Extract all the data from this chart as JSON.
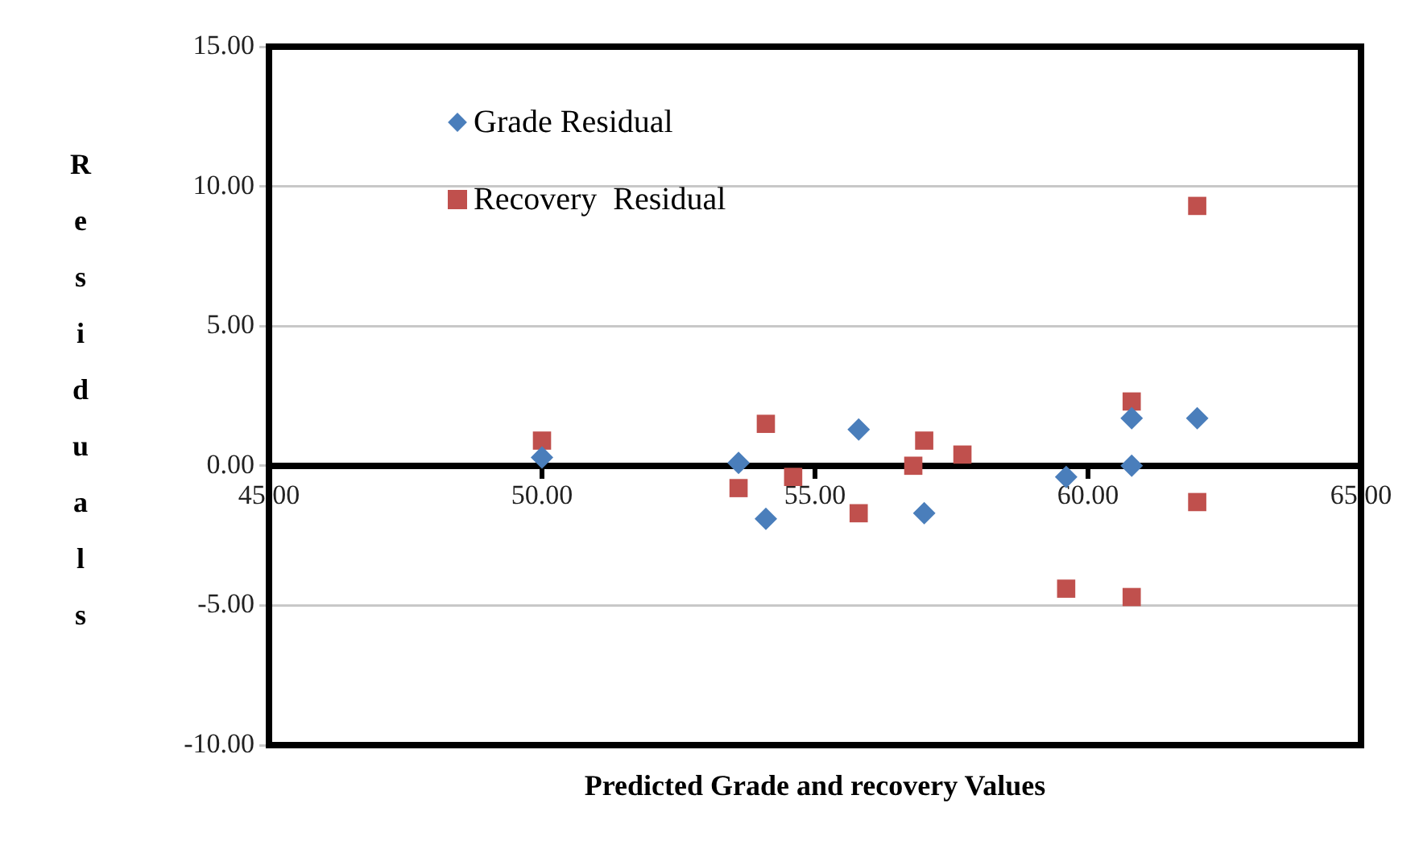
{
  "chart_data": {
    "type": "scatter",
    "xlabel": "Predicted  Grade and recovery Values",
    "ylabel": "Residuals",
    "xlim": [
      45,
      65
    ],
    "ylim": [
      -10,
      15
    ],
    "xticks": [
      {
        "value": 45,
        "label": "45.00"
      },
      {
        "value": 50,
        "label": "50.00"
      },
      {
        "value": 55,
        "label": "55.00"
      },
      {
        "value": 60,
        "label": "60.00"
      },
      {
        "value": 65,
        "label": "65.00"
      }
    ],
    "yticks": [
      {
        "value": -10,
        "label": "-10.00"
      },
      {
        "value": -5,
        "label": "-5.00"
      },
      {
        "value": 0,
        "label": "0.00"
      },
      {
        "value": 5,
        "label": "5.00"
      },
      {
        "value": 10,
        "label": "10.00"
      },
      {
        "value": 15,
        "label": "15.00"
      }
    ],
    "grid": "y",
    "legend": "top left",
    "series": [
      {
        "name": "Grade Residual",
        "color": "#4a7ebb",
        "marker": "diamond",
        "x": [
          50.0,
          53.6,
          54.1,
          55.8,
          57.0,
          59.6,
          60.8,
          60.8,
          62.0
        ],
        "values": [
          0.3,
          0.1,
          -1.9,
          1.3,
          -1.7,
          -0.4,
          1.7,
          0.0,
          1.7
        ]
      },
      {
        "name": "Recovery  Residual",
        "color": "#c0504d",
        "marker": "square",
        "x": [
          50.0,
          53.6,
          54.1,
          54.6,
          55.8,
          56.8,
          57.0,
          57.7,
          59.6,
          60.8,
          60.8,
          62.0,
          62.0
        ],
        "values": [
          0.9,
          -0.8,
          1.5,
          -0.4,
          -1.7,
          0.0,
          0.9,
          0.4,
          -4.4,
          2.3,
          -4.7,
          -1.3,
          9.3
        ]
      }
    ]
  }
}
